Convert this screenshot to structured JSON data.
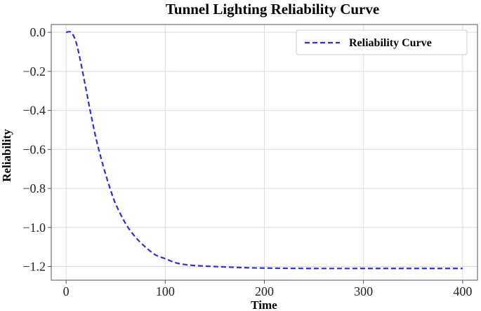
{
  "chart_data": {
    "type": "line",
    "title": "Tunnel Lighting Reliability Curve",
    "xlabel": "Time",
    "ylabel": "Reliability",
    "xlim": [
      -15,
      415
    ],
    "ylim": [
      -1.27,
      0.04
    ],
    "xticks": [
      0,
      100,
      200,
      300,
      400
    ],
    "yticks": [
      0.0,
      -0.2,
      -0.4,
      -0.6,
      -0.8,
      -1.0,
      -1.2
    ],
    "ytick_labels": [
      "0.0",
      "−0.2",
      "−0.4",
      "−0.6",
      "−0.8",
      "−1.0",
      "−1.2"
    ],
    "grid": true,
    "legend_position": "top-right",
    "series": [
      {
        "name": "Reliability Curve",
        "color": "#2b2bf0",
        "style": "dashed",
        "x": [
          0,
          5,
          10,
          15,
          20,
          25,
          30,
          35,
          40,
          45,
          50,
          60,
          70,
          80,
          90,
          100,
          110,
          120,
          130,
          140,
          150,
          175,
          200,
          250,
          300,
          350,
          400
        ],
        "y": [
          0.0,
          0.0,
          -0.05,
          -0.16,
          -0.29,
          -0.42,
          -0.54,
          -0.64,
          -0.73,
          -0.81,
          -0.88,
          -0.98,
          -1.05,
          -1.1,
          -1.14,
          -1.16,
          -1.18,
          -1.19,
          -1.195,
          -1.198,
          -1.2,
          -1.205,
          -1.208,
          -1.21,
          -1.21,
          -1.21,
          -1.21
        ]
      }
    ]
  }
}
